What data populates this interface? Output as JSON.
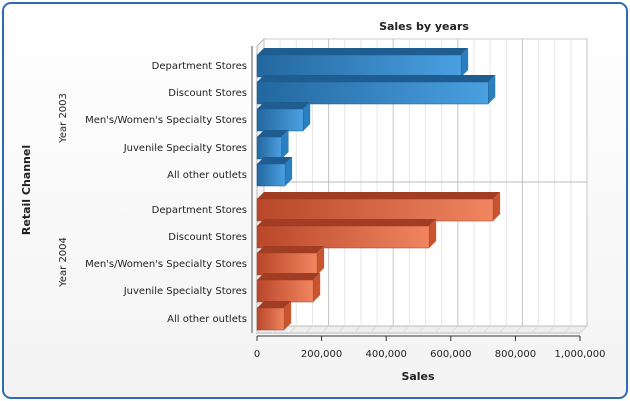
{
  "chart_data": {
    "type": "bar",
    "orientation": "horizontal",
    "title": "Sales by years",
    "xlabel": "Sales",
    "ylabel": "Retail Channel",
    "xlim": [
      0,
      1000000
    ],
    "x_ticks": [
      "0",
      "200,000",
      "400,000",
      "600,000",
      "800,000",
      "1,000,000"
    ],
    "x_tick_values": [
      0,
      200000,
      400000,
      600000,
      800000,
      1000000
    ],
    "grid": true,
    "categories": [
      "Department Stores",
      "Discount Stores",
      "Men's/Women's Specialty Stores",
      "Juvenile Specialty Stores",
      "All other outlets"
    ],
    "series": [
      {
        "name": "Year 2003",
        "color": "#3a8fd0",
        "values": [
          632000,
          716000,
          143000,
          76000,
          87000
        ]
      },
      {
        "name": "Year 2004",
        "color": "#e06a45",
        "values": [
          731000,
          533000,
          186000,
          174000,
          84000
        ]
      }
    ]
  }
}
